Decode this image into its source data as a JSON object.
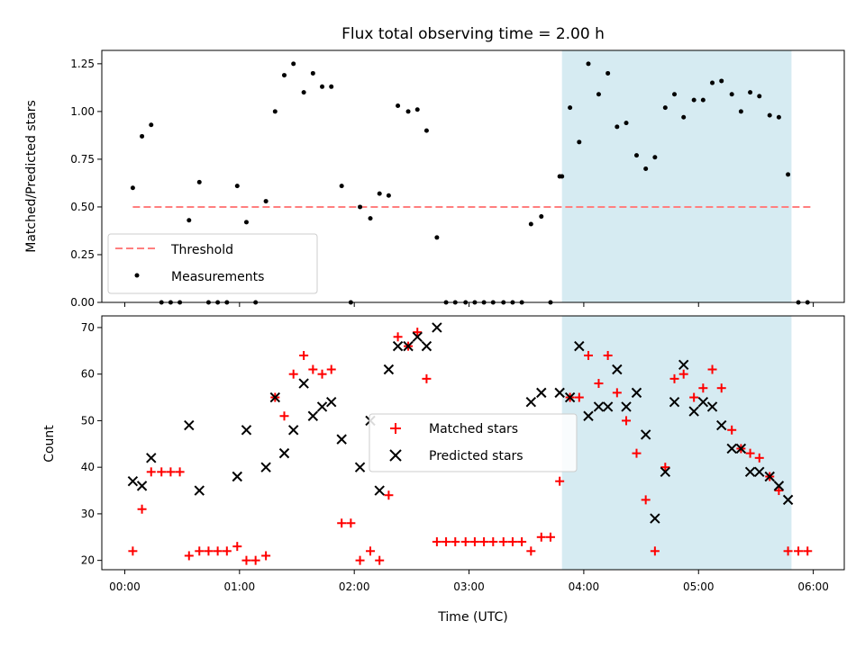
{
  "chart_data": [
    {
      "type": "scatter",
      "title": "Flux total observing time = 2.00 h",
      "xlabel": "",
      "ylabel": "Matched/Predicted stars",
      "xlim": [
        -0.2,
        6.27
      ],
      "ylim": [
        0,
        1.32
      ],
      "yticks": [
        0,
        0.25,
        0.5,
        0.75,
        1.0,
        1.25
      ],
      "ytick_labels": [
        "0.00",
        "0.25",
        "0.50",
        "0.75",
        "1.00",
        "1.25"
      ],
      "shaded_interval_hours": [
        3.81,
        5.81
      ],
      "shade_color": "#add8e6",
      "threshold": {
        "name": "Threshold",
        "value": 0.5,
        "x_range": [
          0.07,
          6.0
        ],
        "color": "#ff7f7f"
      },
      "legend": [
        "Threshold",
        "Measurements"
      ],
      "legend_loc": "lower-left",
      "series": [
        {
          "name": "Measurements",
          "color": "#000000",
          "x": [
            0.07,
            0.15,
            0.23,
            0.32,
            0.4,
            0.48,
            0.56,
            0.65,
            0.73,
            0.81,
            0.89,
            0.98,
            1.06,
            1.14,
            1.23,
            1.31,
            1.39,
            1.47,
            1.56,
            1.64,
            1.72,
            1.8,
            1.89,
            1.97,
            2.05,
            2.14,
            2.22,
            2.3,
            2.38,
            2.47,
            2.55,
            2.63,
            2.72,
            2.8,
            2.88,
            2.97,
            3.05,
            3.13,
            3.21,
            3.3,
            3.38,
            3.46,
            3.54,
            3.63,
            3.71,
            3.79,
            3.81,
            3.88,
            3.96,
            4.04,
            4.13,
            4.21,
            4.29,
            4.37,
            4.46,
            4.54,
            4.62,
            4.71,
            4.79,
            4.87,
            4.96,
            5.04,
            5.12,
            5.2,
            5.29,
            5.37,
            5.45,
            5.53,
            5.62,
            5.7,
            5.78,
            5.87,
            5.95
          ],
          "y": [
            0.6,
            0.87,
            0.93,
            0.0,
            0.0,
            0.0,
            0.43,
            0.63,
            0.0,
            0.0,
            0.0,
            0.61,
            0.42,
            0.0,
            0.53,
            1.0,
            1.19,
            1.25,
            1.1,
            1.2,
            1.13,
            1.13,
            0.61,
            0.0,
            0.5,
            0.44,
            0.57,
            0.56,
            1.03,
            1.0,
            1.01,
            0.9,
            0.34,
            0.0,
            0.0,
            0.0,
            0.0,
            0.0,
            0.0,
            0.0,
            0.0,
            0.0,
            0.41,
            0.45,
            0.0,
            0.66,
            0.66,
            1.02,
            0.84,
            1.25,
            1.09,
            1.2,
            0.92,
            0.94,
            0.77,
            0.7,
            0.76,
            1.02,
            1.09,
            0.97,
            1.06,
            1.06,
            1.15,
            1.16,
            1.09,
            1.0,
            1.1,
            1.08,
            0.98,
            0.97,
            0.67,
            0.0,
            0.0
          ]
        }
      ]
    },
    {
      "type": "scatter",
      "title": "",
      "xlabel": "Time (UTC)",
      "ylabel": "Count",
      "xlim": [
        -0.2,
        6.27
      ],
      "ylim": [
        18,
        72.5
      ],
      "yticks": [
        20,
        30,
        40,
        50,
        60,
        70
      ],
      "ytick_labels": [
        "20",
        "30",
        "40",
        "50",
        "60",
        "70"
      ],
      "xticks": [
        0,
        1,
        2,
        3,
        4,
        5,
        6
      ],
      "xtick_labels": [
        "00:00",
        "01:00",
        "02:00",
        "03:00",
        "04:00",
        "05:00",
        "06:00"
      ],
      "shaded_interval_hours": [
        3.81,
        5.81
      ],
      "shade_color": "#add8e6",
      "legend": [
        "Matched stars",
        "Predicted stars"
      ],
      "legend_loc": "center",
      "series": [
        {
          "name": "Matched stars",
          "marker": "plus",
          "color": "#ff0000",
          "x": [
            0.07,
            0.15,
            0.23,
            0.32,
            0.4,
            0.48,
            0.56,
            0.65,
            0.73,
            0.81,
            0.89,
            0.98,
            1.06,
            1.14,
            1.23,
            1.31,
            1.39,
            1.47,
            1.56,
            1.64,
            1.72,
            1.8,
            1.89,
            1.97,
            2.05,
            2.14,
            2.22,
            2.3,
            2.38,
            2.47,
            2.55,
            2.63,
            2.72,
            2.8,
            2.88,
            2.97,
            3.05,
            3.13,
            3.21,
            3.3,
            3.38,
            3.46,
            3.54,
            3.63,
            3.71,
            3.79,
            3.88,
            3.96,
            4.04,
            4.13,
            4.21,
            4.29,
            4.37,
            4.46,
            4.54,
            4.62,
            4.71,
            4.79,
            4.87,
            4.96,
            5.04,
            5.12,
            5.2,
            5.29,
            5.37,
            5.45,
            5.53,
            5.62,
            5.7,
            5.78,
            5.87,
            5.95
          ],
          "y": [
            22,
            31,
            39,
            39,
            39,
            39,
            21,
            22,
            22,
            22,
            22,
            23,
            20,
            20,
            21,
            55,
            51,
            60,
            64,
            61,
            60,
            61,
            28,
            28,
            20,
            22,
            20,
            34,
            68,
            66,
            69,
            59,
            24,
            24,
            24,
            24,
            24,
            24,
            24,
            24,
            24,
            24,
            22,
            25,
            25,
            37,
            55,
            55,
            64,
            58,
            64,
            56,
            50,
            43,
            33,
            22,
            40,
            59,
            60,
            55,
            57,
            61,
            57,
            48,
            44,
            43,
            42,
            38,
            35,
            22,
            22,
            22
          ]
        },
        {
          "name": "Predicted stars",
          "marker": "x",
          "color": "#000000",
          "x": [
            0.07,
            0.15,
            0.23,
            0.56,
            0.65,
            0.98,
            1.06,
            1.23,
            1.31,
            1.39,
            1.47,
            1.56,
            1.64,
            1.72,
            1.8,
            1.89,
            2.05,
            2.14,
            2.22,
            2.3,
            2.38,
            2.47,
            2.55,
            2.63,
            2.72,
            3.54,
            3.63,
            3.79,
            3.88,
            3.96,
            4.04,
            4.13,
            4.21,
            4.29,
            4.37,
            4.46,
            4.54,
            4.62,
            4.71,
            4.79,
            4.87,
            4.96,
            5.04,
            5.12,
            5.2,
            5.29,
            5.37,
            5.45,
            5.53,
            5.62,
            5.7,
            5.78
          ],
          "y": [
            37,
            36,
            42,
            49,
            35,
            38,
            48,
            40,
            55,
            43,
            48,
            58,
            51,
            53,
            54,
            46,
            40,
            50,
            35,
            61,
            66,
            66,
            68,
            66,
            70,
            54,
            56,
            56,
            55,
            66,
            51,
            53,
            53,
            61,
            53,
            56,
            47,
            29,
            39,
            54,
            62,
            52,
            54,
            53,
            49,
            44,
            44,
            39,
            39,
            38,
            36,
            33
          ]
        }
      ]
    }
  ]
}
